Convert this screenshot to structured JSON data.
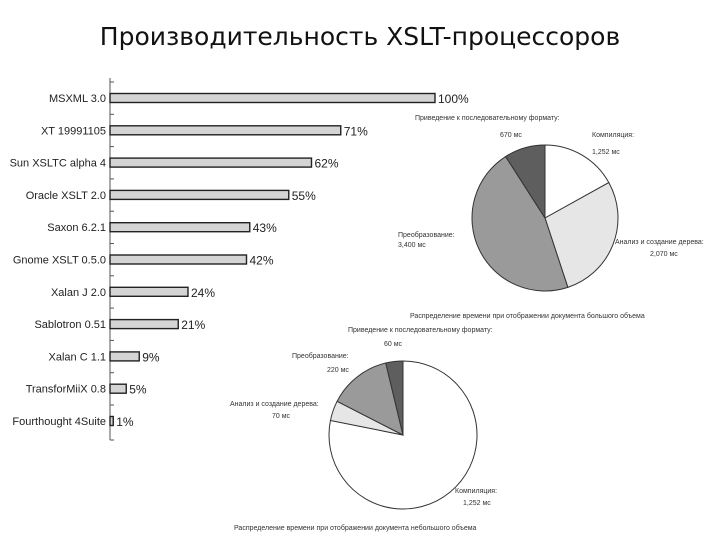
{
  "title": "Производительность XSLT-процессоров",
  "chart_data": [
    {
      "type": "bar",
      "orientation": "horizontal",
      "categories": [
        "MSXML 3.0",
        "XT 19991105",
        "Sun XSLTC alpha 4",
        "Oracle XSLT 2.0",
        "Saxon 6.2.1",
        "Gnome XSLT 0.5.0",
        "Xalan J 2.0",
        "Sablotron 0.51",
        "Xalan C 1.1",
        "TransforMiiX 0.8",
        "Fourthought 4Suite"
      ],
      "values": [
        100,
        71,
        62,
        55,
        43,
        42,
        24,
        21,
        9,
        5,
        1
      ],
      "value_labels": [
        "100%",
        "71%",
        "62%",
        "55%",
        "43%",
        "42%",
        "24%",
        "21%",
        "9%",
        "5%",
        "1%"
      ],
      "xlim": [
        0,
        100
      ],
      "bar_color": "#d4d4d4"
    },
    {
      "type": "pie",
      "labels": [
        "Компиляция",
        "Анализ и создание дерева",
        "Преобразование",
        "Приведение к последовательному формату"
      ],
      "value_text": [
        "1,252 мс",
        "2,070 мс",
        "3,400 мс",
        "670 мс"
      ],
      "values": [
        1252,
        2070,
        3400,
        670
      ],
      "colors": [
        "#ffffff",
        "#e6e6e6",
        "#9a9a9a",
        "#5e5e5e"
      ],
      "caption": "Распределение времени при отображении документа большого объема"
    },
    {
      "type": "pie",
      "labels": [
        "Компиляция",
        "Анализ и создание дерева",
        "Преобразование",
        "Приведение к последовательному формату"
      ],
      "value_text": [
        "1,252 мс",
        "70 мс",
        "220 мс",
        "60 мс"
      ],
      "values": [
        1252,
        70,
        220,
        60
      ],
      "colors": [
        "#ffffff",
        "#e6e6e6",
        "#9a9a9a",
        "#5e5e5e"
      ],
      "caption": "Распределение времени при отображении документа небольшого объема"
    }
  ]
}
